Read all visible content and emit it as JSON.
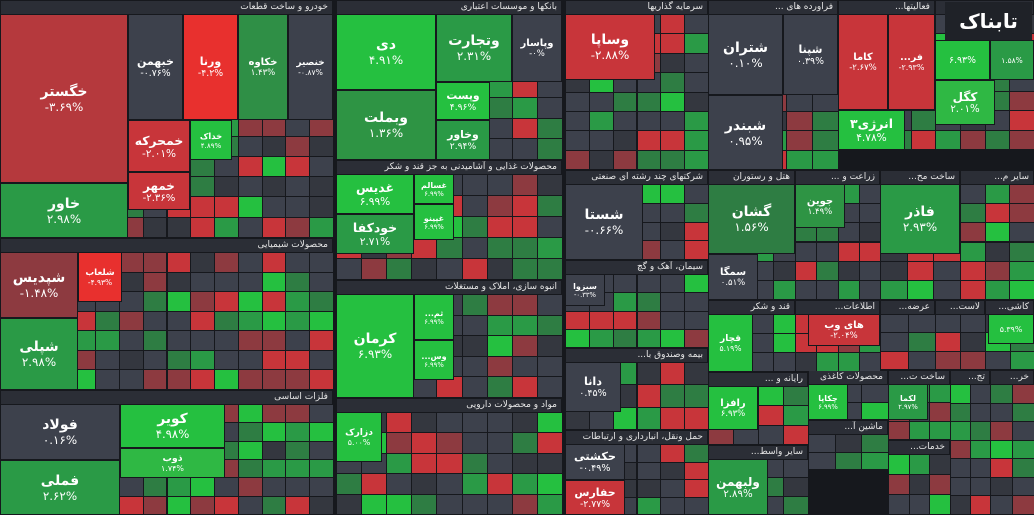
{
  "logo": "تابناک",
  "sectors": [
    {
      "title": "خودرو و ساخت قطعات",
      "tiles": [
        {
          "symbol": "خگستر",
          "change": "-۳.۶۹%",
          "color": "#b5393d"
        },
        {
          "symbol": "خاور",
          "change": "۲.۹۸%",
          "color": "#2a9a46"
        },
        {
          "symbol": "خبهمن",
          "change": "-۰.۷۶%",
          "color": "#3d414c"
        },
        {
          "symbol": "ورنا",
          "change": "-۴.۲%",
          "color": "#e8302e"
        },
        {
          "symbol": "خکاوه",
          "change": "۱.۴۳%",
          "color": "#2f8f46"
        },
        {
          "symbol": "خنصیر",
          "change": "-۰.۸۷%",
          "color": "#3d414c"
        },
        {
          "symbol": "خمحرکه",
          "change": "-۲.۰۱%",
          "color": "#c8353a"
        },
        {
          "symbol": "خمهر",
          "change": "-۲.۳۶%",
          "color": "#c8353a"
        },
        {
          "symbol": "خداک",
          "change": "۴.۸۹%",
          "color": "#25c040"
        }
      ]
    },
    {
      "title": "بانکها و موسسات اعتباری",
      "tiles": [
        {
          "symbol": "دی",
          "change": "۴.۹۱%",
          "color": "#25c040"
        },
        {
          "symbol": "وبملت",
          "change": "۱.۳۶%",
          "color": "#2e9444"
        },
        {
          "symbol": "وتجارت",
          "change": "۲.۳۱%",
          "color": "#2a9a46"
        },
        {
          "symbol": "وپاسار",
          "change": "-۰%",
          "color": "#3d414c"
        },
        {
          "symbol": "وپست",
          "change": "۴.۹۶%",
          "color": "#25c040"
        },
        {
          "symbol": "وخاور",
          "change": "۲.۹۴%",
          "color": "#2a9a46"
        }
      ]
    },
    {
      "title": "سرمایه گذاریها",
      "tiles": [
        {
          "symbol": "وساپا",
          "change": "-۲.۸۸%",
          "color": "#c8353a"
        }
      ]
    },
    {
      "title": "فراورده های ...",
      "tiles": [
        {
          "symbol": "شتران",
          "change": "۰.۱۰%",
          "color": "#3d414c"
        },
        {
          "symbol": "شپنا",
          "change": "۰.۳۹%",
          "color": "#3d414c"
        },
        {
          "symbol": "شبندر",
          "change": "۰.۹۵%",
          "color": "#3d414c"
        }
      ]
    },
    {
      "title": "فعالیتها...",
      "tiles": [
        {
          "symbol": "کاما",
          "change": "-۲.۶۷%",
          "color": "#c8353a"
        },
        {
          "symbol": "فر...",
          "change": "-۲.۹۳%",
          "color": "#c8353a"
        },
        {
          "symbol": "انرژی۳",
          "change": "۴.۷۸%",
          "color": "#25c040"
        }
      ]
    },
    {
      "title": "استخراج ک...",
      "tiles": [
        {
          "change": "۶.۹۳%",
          "color": "#25c040"
        },
        {
          "change": "۱.۵۸%",
          "color": "#2a9a46"
        },
        {
          "symbol": "کگل",
          "change": "۲.۰۱%",
          "color": "#2fb844"
        }
      ]
    },
    {
      "title": "محصولات شیمیایی",
      "tiles": [
        {
          "symbol": "شپدیس",
          "change": "-۱.۴۸%",
          "color": "#8d3a40"
        },
        {
          "symbol": "شپلی",
          "change": "۲.۹۸%",
          "color": "#2a9a46"
        },
        {
          "symbol": "شلعاب",
          "change": "-۴.۹۳%",
          "color": "#e8302e"
        }
      ]
    },
    {
      "title": "فلزات اساسی",
      "tiles": [
        {
          "symbol": "فولاد",
          "change": "۰.۱۶%",
          "color": "#3d414c"
        },
        {
          "symbol": "فملی",
          "change": "۲.۶۲%",
          "color": "#2a9a46"
        },
        {
          "symbol": "کویر",
          "change": "۴.۹۸%",
          "color": "#25c040"
        },
        {
          "symbol": "ذوب",
          "change": "۱.۷۴%",
          "color": "#2fb844"
        }
      ]
    },
    {
      "title": "محصولات غذایی و آشامیدنی به جز قند و شکر",
      "tiles": [
        {
          "symbol": "غسالم",
          "change": "۶.۹۹%",
          "color": "#25c040"
        },
        {
          "symbol": "غدیس",
          "change": "۶.۹۹%",
          "color": "#25c040"
        },
        {
          "symbol": "خودکفا",
          "change": "۲.۷۱%",
          "color": "#2a9a46"
        },
        {
          "symbol": "غپینو",
          "change": "۶.۹۹%",
          "color": "#25c040"
        }
      ]
    },
    {
      "title": "انبوه سازی، املاک و مستغلات",
      "tiles": [
        {
          "symbol": "کرمان",
          "change": "۶.۹۳%",
          "color": "#25c040"
        },
        {
          "symbol": "ثم...",
          "change": "۶.۹۹%",
          "color": "#25c040"
        },
        {
          "symbol": "وس...",
          "change": "۶.۹۹%",
          "color": "#25c040"
        }
      ]
    },
    {
      "title": "مواد و محصولات دارویی",
      "tiles": [
        {
          "symbol": "دزارک",
          "change": "۵.۰۰%",
          "color": "#25c040"
        }
      ]
    },
    {
      "title": "شرکتهای چند رشته ای صنعتی",
      "tiles": [
        {
          "symbol": "شستا",
          "change": "-۰.۶۶%",
          "color": "#3d414c"
        }
      ]
    },
    {
      "title": "سیمان، آهک و گچ",
      "tiles": [
        {
          "symbol": "سبزوا",
          "change": "-۰.۳۳%",
          "color": "#3d414c"
        }
      ]
    },
    {
      "title": "بیمه وصندوق با...",
      "tiles": [
        {
          "symbol": "دانا",
          "change": "۰.۴۵%",
          "color": "#3d414c"
        }
      ]
    },
    {
      "title": "حمل ونقل، انبارداری و ارتباطات",
      "tiles": [
        {
          "symbol": "حکشتی",
          "change": "-۰.۴۹%",
          "color": "#3d414c"
        },
        {
          "symbol": "حفارس",
          "change": "-۲.۷۷%",
          "color": "#c8353a"
        }
      ]
    },
    {
      "title": "هتل و رستوران",
      "tiles": [
        {
          "symbol": "گشان",
          "change": "۱.۵۶%",
          "color": "#2e7d43"
        },
        {
          "symbol": "سمگا",
          "change": "۰.۵۱%",
          "color": "#3d414c"
        }
      ]
    },
    {
      "title": "زراعت و ...",
      "tiles": [
        {
          "symbol": "جوین",
          "change": "۱.۴۹%",
          "color": "#2e9444"
        }
      ]
    },
    {
      "title": "ساخت مح...",
      "tiles": [
        {
          "symbol": "فاذر",
          "change": "۲.۹۳%",
          "color": "#2a9a46"
        }
      ]
    },
    {
      "title": "سایر م...",
      "tiles": []
    },
    {
      "title": "قند و شکر",
      "tiles": [
        {
          "symbol": "قچار",
          "change": "۵.۱۹%",
          "color": "#25c040"
        }
      ]
    },
    {
      "title": "اطلاعات...",
      "tiles": [
        {
          "symbol": "های وب",
          "change": "-۲.۰۴%",
          "color": "#c8353a"
        }
      ]
    },
    {
      "title": "عرضه...",
      "tiles": []
    },
    {
      "title": "لاست...",
      "tiles": []
    },
    {
      "title": "کاشی...",
      "tiles": [
        {
          "change": "۵.۳۹%",
          "color": "#25c040"
        }
      ]
    },
    {
      "title": "رایانه و ...",
      "tiles": [
        {
          "symbol": "رافزا",
          "change": "۶.۹۳%",
          "color": "#25c040"
        }
      ]
    },
    {
      "title": "محصولات کاغذی",
      "tiles": [
        {
          "symbol": "چکاپا",
          "change": "۶.۹۹%",
          "color": "#25c040"
        }
      ]
    },
    {
      "title": "ساخت ت...",
      "tiles": [
        {
          "symbol": "لکما",
          "change": "۲.۹۷%",
          "color": "#2a9a46"
        }
      ]
    },
    {
      "title": "سایر واسط...",
      "tiles": [
        {
          "symbol": "ولبهمن",
          "change": "۲.۸۹%",
          "color": "#2a9a46"
        }
      ]
    },
    {
      "title": "ماشین آ...",
      "tiles": []
    },
    {
      "title": "خدمات...",
      "tiles": []
    },
    {
      "title": "تج...",
      "tiles": []
    },
    {
      "title": "خر...",
      "tiles": []
    }
  ]
}
